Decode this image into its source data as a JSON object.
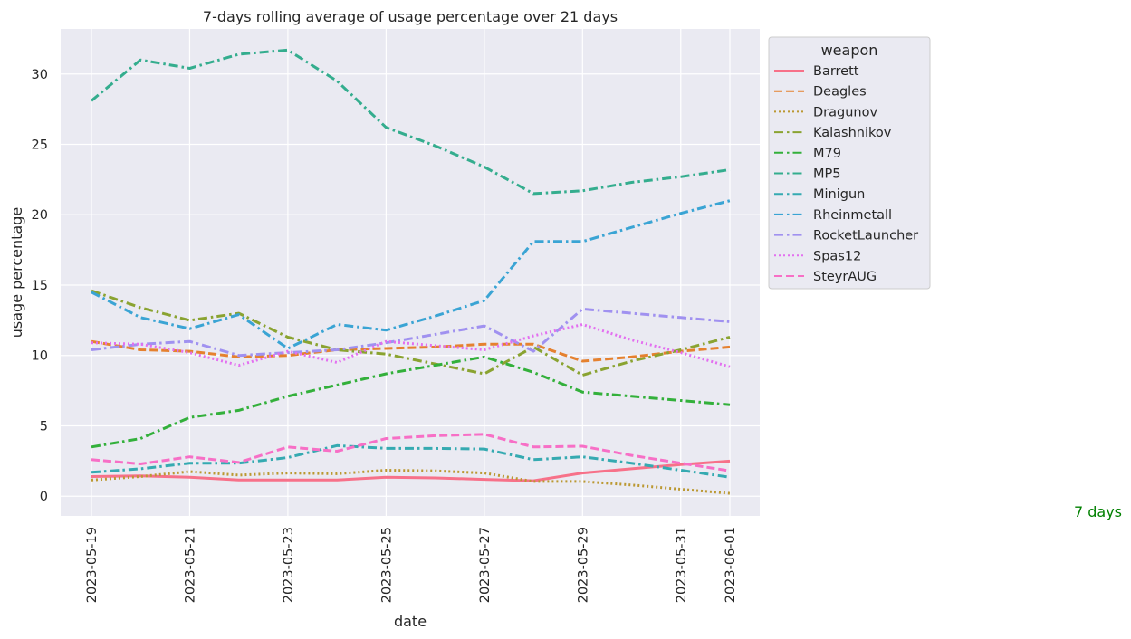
{
  "chart_data": {
    "type": "line",
    "title": "7-days rolling average of usage percentage over 21 days",
    "xlabel": "date",
    "ylabel": "usage percentage",
    "x": [
      "2023-05-19",
      "2023-05-20",
      "2023-05-21",
      "2023-05-22",
      "2023-05-23",
      "2023-05-24",
      "2023-05-25",
      "2023-05-26",
      "2023-05-27",
      "2023-05-28",
      "2023-05-29",
      "2023-05-30",
      "2023-05-31",
      "2023-06-01"
    ],
    "x_ticks": [
      "2023-05-19",
      "2023-05-21",
      "2023-05-23",
      "2023-05-25",
      "2023-05-27",
      "2023-05-29",
      "2023-05-31",
      "2023-06-01"
    ],
    "ylim": [
      -1.4,
      33.2
    ],
    "y_ticks": [
      0,
      5,
      10,
      15,
      20,
      25,
      30
    ],
    "grid": true,
    "legend_title": "weapon",
    "legend_position": "upper-left-outside",
    "annotation": {
      "text": "7 days",
      "color": "#008000"
    },
    "series": [
      {
        "name": "Barrett",
        "color": "#f77189",
        "dash": "solid",
        "values": [
          1.4,
          1.45,
          1.35,
          1.15,
          1.15,
          1.15,
          1.35,
          1.3,
          1.2,
          1.1,
          1.65,
          1.95,
          2.25,
          2.5
        ]
      },
      {
        "name": "Deagles",
        "color": "#e5812f",
        "dash": "dashed",
        "values": [
          11.0,
          10.4,
          10.3,
          9.9,
          10.0,
          10.4,
          10.5,
          10.6,
          10.8,
          10.8,
          9.6,
          9.9,
          10.3,
          10.6
        ]
      },
      {
        "name": "Dragunov",
        "color": "#bb9831",
        "dash": "dotted",
        "values": [
          1.15,
          1.4,
          1.75,
          1.5,
          1.65,
          1.6,
          1.85,
          1.8,
          1.65,
          1.05,
          1.05,
          0.8,
          0.5,
          0.2
        ]
      },
      {
        "name": "Kalashnikov",
        "color": "#8aa331",
        "dash": "dashdot",
        "values": [
          14.6,
          13.4,
          12.5,
          13.0,
          11.3,
          10.4,
          10.1,
          9.4,
          8.7,
          10.6,
          8.6,
          9.6,
          10.4,
          11.3
        ]
      },
      {
        "name": "M79",
        "color": "#33b03b",
        "dash": "dashdot",
        "values": [
          3.5,
          4.1,
          5.6,
          6.1,
          7.1,
          7.9,
          8.7,
          9.3,
          9.9,
          8.8,
          7.4,
          7.1,
          6.8,
          6.5
        ]
      },
      {
        "name": "MP5",
        "color": "#34ad8e",
        "dash": "dashdot",
        "values": [
          28.1,
          31.0,
          30.4,
          31.4,
          31.7,
          29.5,
          26.2,
          24.9,
          23.4,
          21.5,
          21.7,
          22.3,
          22.7,
          23.2
        ]
      },
      {
        "name": "Minigun",
        "color": "#35aab1",
        "dash": "dashdot",
        "values": [
          1.7,
          1.95,
          2.35,
          2.35,
          2.75,
          3.6,
          3.4,
          3.4,
          3.35,
          2.6,
          2.8,
          2.35,
          1.85,
          1.35
        ]
      },
      {
        "name": "Rheinmetall",
        "color": "#3aa4d4",
        "dash": "dashdot",
        "values": [
          14.5,
          12.7,
          11.9,
          12.9,
          10.5,
          12.2,
          11.8,
          12.8,
          13.9,
          18.1,
          18.1,
          19.1,
          20.1,
          21.0
        ]
      },
      {
        "name": "RocketLauncher",
        "color": "#a091f0",
        "dash": "dashdot",
        "values": [
          10.4,
          10.8,
          11.0,
          10.0,
          10.2,
          10.4,
          10.9,
          11.5,
          12.1,
          10.3,
          13.3,
          13.0,
          12.7,
          12.4
        ]
      },
      {
        "name": "Spas12",
        "color": "#e36ff0",
        "dash": "dotted",
        "values": [
          10.9,
          10.8,
          10.2,
          9.3,
          10.3,
          9.5,
          11.0,
          10.7,
          10.4,
          11.4,
          12.2,
          11.1,
          10.2,
          9.2
        ]
      },
      {
        "name": "SteyrAUG",
        "color": "#f76fc6",
        "dash": "dashed",
        "values": [
          2.6,
          2.3,
          2.8,
          2.4,
          3.5,
          3.2,
          4.1,
          4.3,
          4.4,
          3.5,
          3.55,
          2.9,
          2.35,
          1.8
        ]
      }
    ]
  }
}
